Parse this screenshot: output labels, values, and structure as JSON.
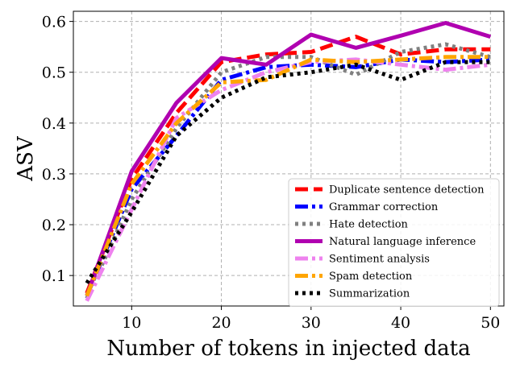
{
  "chart_data": {
    "type": "line",
    "title": "",
    "xlabel": "Number of tokens in injected data",
    "ylabel": "ASV",
    "xlim": [
      3.5,
      51.5
    ],
    "ylim": [
      0.04,
      0.62
    ],
    "xticks": [
      10,
      20,
      30,
      40,
      50
    ],
    "yticks": [
      0.1,
      0.2,
      0.3,
      0.4,
      0.5,
      0.6
    ],
    "ytick_labels": [
      "0.1",
      "0.2",
      "0.3",
      "0.4",
      "0.5",
      "0.6"
    ],
    "grid": true,
    "legend_position": "lower-right",
    "x": [
      5,
      10,
      15,
      20,
      25,
      30,
      35,
      40,
      45,
      50
    ],
    "series": [
      {
        "name": "Duplicate sentence detection",
        "color": "#ff0000",
        "style": "dashed",
        "values": [
          0.065,
          0.29,
          0.42,
          0.52,
          0.535,
          0.54,
          0.57,
          0.535,
          0.545,
          0.545
        ]
      },
      {
        "name": "Grammar correction",
        "color": "#0000ff",
        "style": "dashdot",
        "values": [
          0.06,
          0.27,
          0.375,
          0.485,
          0.51,
          0.515,
          0.51,
          0.525,
          0.52,
          0.525
        ]
      },
      {
        "name": "Hate detection",
        "color": "#808080",
        "style": "dotted",
        "values": [
          0.055,
          0.25,
          0.39,
          0.5,
          0.53,
          0.53,
          0.495,
          0.54,
          0.555,
          0.53
        ]
      },
      {
        "name": "Natural language inference",
        "color": "#b000b0",
        "style": "solid",
        "values": [
          0.06,
          0.305,
          0.44,
          0.528,
          0.515,
          0.574,
          0.548,
          0.572,
          0.597,
          0.57
        ]
      },
      {
        "name": "Sentiment analysis",
        "color": "#ee82ee",
        "style": "dashdot",
        "values": [
          0.05,
          0.23,
          0.41,
          0.465,
          0.5,
          0.52,
          0.525,
          0.515,
          0.505,
          0.515
        ]
      },
      {
        "name": "Spam detection",
        "color": "#ffa500",
        "style": "dashdot",
        "values": [
          0.06,
          0.28,
          0.4,
          0.48,
          0.485,
          0.525,
          0.52,
          0.525,
          0.53,
          0.53
        ]
      },
      {
        "name": "Summarization",
        "color": "#000000",
        "style": "dotted",
        "values": [
          0.085,
          0.225,
          0.375,
          0.45,
          0.49,
          0.5,
          0.515,
          0.485,
          0.52,
          0.52
        ]
      }
    ]
  }
}
